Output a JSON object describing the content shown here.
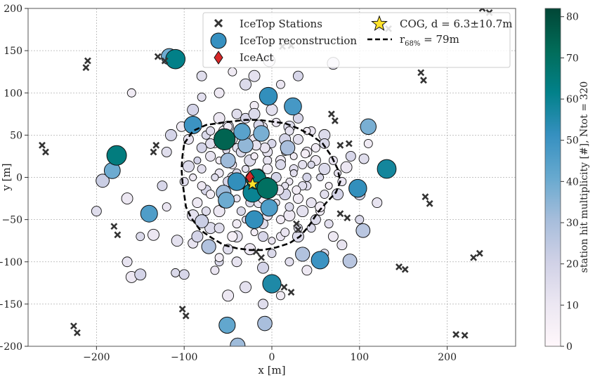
{
  "chart_data": {
    "type": "scatter",
    "title": "",
    "xlabel": "x [m]",
    "ylabel": "y [m]",
    "xlim": [
      -278,
      278
    ],
    "ylim": [
      -200,
      200
    ],
    "xticks": [
      -200,
      -100,
      0,
      100,
      200
    ],
    "xtick_labels": [
      "−200",
      "−100",
      "0",
      "100",
      "200"
    ],
    "yticks": [
      -200,
      -150,
      -100,
      -50,
      0,
      50,
      100,
      150,
      200
    ],
    "ytick_labels": [
      "−200",
      "−150",
      "−100",
      "−50",
      "0",
      "50",
      "100",
      "150",
      "200"
    ],
    "grid": true,
    "legend": {
      "position": "top-right",
      "entries": [
        {
          "symbol": "cross",
          "label": "IceTop Stations"
        },
        {
          "symbol": "circle",
          "label": "IceTop reconstruction"
        },
        {
          "symbol": "diamond",
          "label": "IceAct"
        },
        {
          "symbol": "star",
          "label": "COG, d = 6.3±10.7m"
        },
        {
          "symbol": "dashed",
          "label": "r68% = 79m"
        }
      ]
    },
    "colorbar": {
      "label": "station hit multiplicity [#], Ntot = 320",
      "range": [
        0,
        82
      ],
      "ticks": [
        0,
        10,
        20,
        30,
        40,
        50,
        60,
        70,
        80
      ],
      "colors": [
        "#fff7fb",
        "#ece7f2",
        "#d0d1e6",
        "#a6bddb",
        "#67a9cf",
        "#3690c0",
        "#02818a",
        "#016c59",
        "#014636"
      ]
    },
    "icetop_stations": [
      [
        -262,
        38
      ],
      [
        -258,
        30
      ],
      [
        -212,
        130
      ],
      [
        -210,
        138
      ],
      [
        -130,
        143
      ],
      [
        -122,
        138
      ],
      [
        -132,
        38
      ],
      [
        -135,
        30
      ],
      [
        -180,
        -58
      ],
      [
        -176,
        -68
      ],
      [
        -226,
        -176
      ],
      [
        -222,
        -184
      ],
      [
        -102,
        -156
      ],
      [
        -98,
        -164
      ],
      [
        -18,
        -88
      ],
      [
        -12,
        -95
      ],
      [
        14,
        -130
      ],
      [
        22,
        -136
      ],
      [
        78,
        -43
      ],
      [
        86,
        -48
      ],
      [
        68,
        75
      ],
      [
        72,
        67
      ],
      [
        78,
        38
      ],
      [
        88,
        40
      ],
      [
        170,
        124
      ],
      [
        173,
        115
      ],
      [
        125,
        178
      ],
      [
        133,
        176
      ],
      [
        145,
        -106
      ],
      [
        152,
        -109
      ],
      [
        175,
        -23
      ],
      [
        180,
        -31
      ],
      [
        210,
        -186
      ],
      [
        220,
        -187
      ],
      [
        230,
        -95
      ],
      [
        237,
        -90
      ],
      [
        240,
        200
      ],
      [
        248,
        195
      ],
      [
        12,
        155
      ],
      [
        22,
        156
      ],
      [
        28,
        -55
      ],
      [
        30,
        -62
      ]
    ],
    "reconstruction": [
      {
        "x": -110,
        "y": 140,
        "m": 62
      },
      {
        "x": -117,
        "y": 143,
        "m": 40
      },
      {
        "x": -4,
        "y": 96,
        "m": 52
      },
      {
        "x": 24,
        "y": 84,
        "m": 48
      },
      {
        "x": -90,
        "y": 62,
        "m": 50
      },
      {
        "x": -54,
        "y": 45,
        "m": 74
      },
      {
        "x": -34,
        "y": 54,
        "m": 44
      },
      {
        "x": -12,
        "y": 52,
        "m": 38
      },
      {
        "x": 110,
        "y": 60,
        "m": 38
      },
      {
        "x": -177,
        "y": 26,
        "m": 64
      },
      {
        "x": -182,
        "y": 8,
        "m": 40
      },
      {
        "x": -193,
        "y": -4,
        "m": 22
      },
      {
        "x": -140,
        "y": -43,
        "m": 46
      },
      {
        "x": 131,
        "y": 10,
        "m": 58
      },
      {
        "x": 98,
        "y": -13,
        "m": 52
      },
      {
        "x": 104,
        "y": -63,
        "m": 26
      },
      {
        "x": 55,
        "y": -98,
        "m": 50
      },
      {
        "x": 35,
        "y": -91,
        "m": 28
      },
      {
        "x": 89,
        "y": -99,
        "m": 26
      },
      {
        "x": 0,
        "y": -126,
        "m": 56
      },
      {
        "x": -51,
        "y": -175,
        "m": 42
      },
      {
        "x": -8,
        "y": -173,
        "m": 30
      },
      {
        "x": -39,
        "y": -199,
        "m": 32
      },
      {
        "x": -40,
        "y": -5,
        "m": 52
      },
      {
        "x": -22,
        "y": -18,
        "m": 60
      },
      {
        "x": -18,
        "y": -2,
        "m": 66
      },
      {
        "x": -5,
        "y": -13,
        "m": 70
      },
      {
        "x": -52,
        "y": -27,
        "m": 40
      },
      {
        "x": -3,
        "y": -36,
        "m": 46
      },
      {
        "x": -20,
        "y": -50,
        "m": 52
      },
      {
        "x": -55,
        "y": -18,
        "m": 32
      },
      {
        "x": -72,
        "y": -82,
        "m": 28
      },
      {
        "x": -30,
        "y": 38,
        "m": 34
      },
      {
        "x": -50,
        "y": 20,
        "m": 32
      },
      {
        "x": 18,
        "y": 35,
        "m": 30
      },
      {
        "x": -80,
        "y": -52,
        "m": 22
      },
      {
        "x": 70,
        "y": 135,
        "m": 14
      },
      {
        "x": -3,
        "y": 138,
        "m": 12
      }
    ],
    "rim_stations": [
      [
        -160,
        100
      ],
      [
        -120,
        30
      ],
      [
        -135,
        -68
      ],
      [
        -110,
        -113
      ],
      [
        -90,
        -78
      ],
      [
        -85,
        -70
      ],
      [
        -100,
        -5
      ],
      [
        -103,
        60
      ],
      [
        -95,
        13
      ],
      [
        -120,
        -35
      ],
      [
        -125,
        -10
      ],
      [
        -108,
        -75
      ],
      [
        110,
        40
      ],
      [
        105,
        22
      ],
      [
        85,
        12
      ],
      [
        100,
        -50
      ],
      [
        120,
        -30
      ],
      [
        75,
        -20
      ],
      [
        65,
        -55
      ],
      [
        70,
        -70
      ],
      [
        60,
        50
      ],
      [
        45,
        55
      ],
      [
        30,
        70
      ],
      [
        0,
        80
      ],
      [
        -20,
        85
      ],
      [
        -40,
        75
      ],
      [
        -60,
        70
      ],
      [
        -75,
        50
      ],
      [
        -70,
        25
      ],
      [
        -90,
        80
      ],
      [
        -80,
        95
      ],
      [
        -60,
        100
      ],
      [
        -30,
        110
      ],
      [
        10,
        110
      ],
      [
        30,
        120
      ],
      [
        -20,
        120
      ],
      [
        -45,
        125
      ],
      [
        -80,
        120
      ],
      [
        -160,
        -118
      ],
      [
        -60,
        -100
      ],
      [
        -40,
        -100
      ],
      [
        -10,
        -107
      ],
      [
        20,
        -100
      ],
      [
        40,
        -110
      ],
      [
        30,
        -70
      ],
      [
        10,
        -70
      ],
      [
        -10,
        -70
      ],
      [
        -40,
        -70
      ],
      [
        -60,
        -95
      ],
      [
        -50,
        -85
      ],
      [
        -25,
        -85
      ],
      [
        0,
        -90
      ],
      [
        -165,
        -100
      ],
      [
        -150,
        -115
      ],
      [
        40,
        -10
      ],
      [
        50,
        20
      ],
      [
        60,
        10
      ],
      [
        80,
        -5
      ],
      [
        90,
        25
      ],
      [
        35,
        -40
      ],
      [
        55,
        -40
      ],
      [
        -200,
        -40
      ],
      [
        -165,
        -25
      ],
      [
        -150,
        -70
      ],
      [
        -95,
        45
      ],
      [
        -115,
        50
      ],
      [
        -80,
        10
      ],
      [
        -85,
        -30
      ],
      [
        -70,
        -60
      ],
      [
        -65,
        -110
      ],
      [
        -100,
        -115
      ],
      [
        -30,
        -130
      ],
      [
        10,
        -140
      ],
      [
        -10,
        -150
      ],
      [
        -50,
        -140
      ],
      [
        60,
        -90
      ],
      [
        80,
        -80
      ],
      [
        100,
        -20
      ],
      [
        60,
        -20
      ],
      [
        40,
        30
      ],
      [
        20,
        60
      ],
      [
        -10,
        60
      ],
      [
        -30,
        70
      ],
      [
        -50,
        60
      ],
      [
        -65,
        40
      ],
      [
        -45,
        0
      ],
      [
        -60,
        -40
      ],
      [
        -35,
        -40
      ],
      [
        -15,
        -30
      ],
      [
        15,
        -20
      ],
      [
        25,
        10
      ],
      [
        10,
        20
      ],
      [
        -25,
        20
      ],
      [
        -60,
        5
      ],
      [
        -75,
        -15
      ],
      [
        -90,
        -45
      ],
      [
        -40,
        -55
      ],
      [
        -10,
        -55
      ],
      [
        20,
        -45
      ],
      [
        45,
        -60
      ],
      [
        -5,
        30
      ],
      [
        15,
        45
      ],
      [
        -40,
        35
      ],
      [
        -55,
        55
      ],
      [
        -20,
        75
      ],
      [
        5,
        65
      ]
    ],
    "inner_stations": [
      [
        -60,
        20
      ],
      [
        -45,
        15
      ],
      [
        -35,
        30
      ],
      [
        -20,
        25
      ],
      [
        -5,
        20
      ],
      [
        10,
        15
      ],
      [
        25,
        25
      ],
      [
        35,
        15
      ],
      [
        -50,
        -5
      ],
      [
        -35,
        -10
      ],
      [
        -15,
        5
      ],
      [
        5,
        0
      ],
      [
        20,
        -5
      ],
      [
        35,
        -10
      ],
      [
        -55,
        -30
      ],
      [
        -40,
        -25
      ],
      [
        -25,
        -30
      ],
      [
        -10,
        -25
      ],
      [
        5,
        -30
      ],
      [
        20,
        -35
      ],
      [
        30,
        -25
      ],
      [
        -30,
        10
      ],
      [
        0,
        40
      ],
      [
        -20,
        45
      ],
      [
        15,
        30
      ],
      [
        40,
        0
      ],
      [
        -45,
        45
      ],
      [
        -65,
        0
      ],
      [
        -70,
        -20
      ],
      [
        -5,
        -45
      ],
      [
        -30,
        -50
      ],
      [
        10,
        -50
      ],
      [
        45,
        -30
      ],
      [
        55,
        0
      ],
      [
        50,
        35
      ],
      [
        30,
        45
      ],
      [
        -10,
        50
      ],
      [
        -50,
        60
      ],
      [
        -70,
        40
      ],
      [
        -85,
        20
      ],
      [
        -80,
        -10
      ],
      [
        -60,
        -60
      ],
      [
        -20,
        -65
      ],
      [
        15,
        -65
      ],
      [
        50,
        -50
      ],
      [
        65,
        -10
      ],
      [
        70,
        20
      ],
      [
        60,
        40
      ],
      [
        40,
        55
      ],
      [
        20,
        55
      ],
      [
        -15,
        62
      ],
      [
        -35,
        60
      ],
      [
        -70,
        55
      ],
      [
        -80,
        35
      ],
      [
        -90,
        0
      ],
      [
        -75,
        -40
      ],
      [
        -45,
        -70
      ],
      [
        0,
        -75
      ],
      [
        30,
        -60
      ],
      [
        55,
        -35
      ],
      [
        75,
        5
      ],
      [
        -25,
        0
      ],
      [
        -5,
        10
      ],
      [
        15,
        -10
      ],
      [
        -40,
        5
      ],
      [
        -15,
        -15
      ],
      [
        25,
        5
      ],
      [
        -5,
        -5
      ],
      [
        8,
        -15
      ],
      [
        -28,
        -18
      ],
      [
        38,
        28
      ],
      [
        -8,
        35
      ],
      [
        -52,
        32
      ],
      [
        28,
        -15
      ],
      [
        -18,
        38
      ],
      [
        45,
        15
      ]
    ],
    "iceact": {
      "x": -25,
      "y": 0
    },
    "cog": {
      "x": -22,
      "y": -8
    },
    "r68_contour": [
      [
        -100,
        40
      ],
      [
        -90,
        55
      ],
      [
        -75,
        62
      ],
      [
        -55,
        65
      ],
      [
        -30,
        68
      ],
      [
        -15,
        68
      ],
      [
        0,
        66
      ],
      [
        15,
        64
      ],
      [
        30,
        58
      ],
      [
        45,
        50
      ],
      [
        58,
        40
      ],
      [
        68,
        25
      ],
      [
        75,
        10
      ],
      [
        78,
        -5
      ],
      [
        73,
        -18
      ],
      [
        62,
        -30
      ],
      [
        52,
        -42
      ],
      [
        42,
        -58
      ],
      [
        32,
        -70
      ],
      [
        20,
        -78
      ],
      [
        5,
        -83
      ],
      [
        -10,
        -86
      ],
      [
        -25,
        -86
      ],
      [
        -40,
        -84
      ],
      [
        -55,
        -80
      ],
      [
        -68,
        -72
      ],
      [
        -82,
        -62
      ],
      [
        -92,
        -48
      ],
      [
        -98,
        -35
      ],
      [
        -100,
        -20
      ],
      [
        -102,
        -5
      ],
      [
        -103,
        10
      ],
      [
        -102,
        25
      ],
      [
        -100,
        40
      ]
    ]
  }
}
